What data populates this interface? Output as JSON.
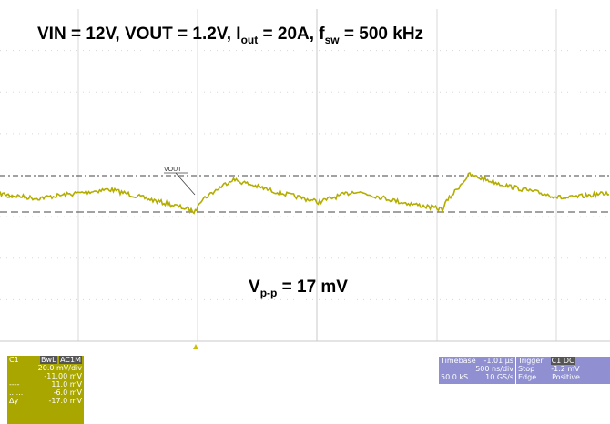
{
  "title": {
    "part1": "VIN = 12V, VOUT = 1.2V, I",
    "sub1": "out",
    "part2": " = 20A, f",
    "sub2": "sw",
    "part3": " = 500 kHz"
  },
  "annotation": {
    "main": "V",
    "sub": "p-p",
    "rest": " = 17 mV"
  },
  "trace_label": "VOUT",
  "channel_marker": "C1",
  "channel_panel": {
    "name": "C1",
    "tags": [
      "BwL",
      "AC1M"
    ],
    "rows": [
      "20.0 mV/div",
      "-11.00 mV",
      "11.0 mV",
      "-6.0 mV"
    ],
    "delta_label": "Δy",
    "delta_value": "-17.0 mV"
  },
  "timebase_panel": {
    "title": "Timebase",
    "offset": "-1.01 µs",
    "scale": "500 ns/div",
    "samples": "50.0 kS",
    "rate": "10 GS/s"
  },
  "trigger_panel": {
    "title": "Trigger",
    "tag": "C1 DC",
    "mode": "Stop",
    "level": "-1.2 mV",
    "type": "Edge",
    "slope": "Positive"
  }
}
